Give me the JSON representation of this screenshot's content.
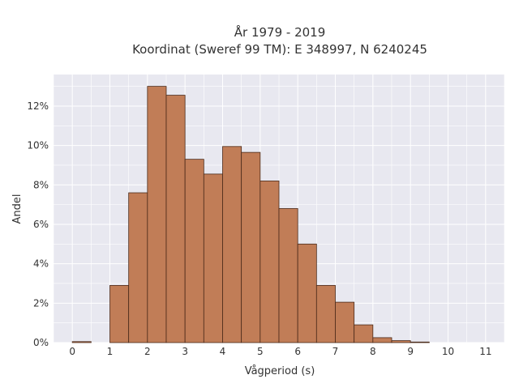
{
  "chart_data": {
    "type": "bar",
    "title_line1": "År 1979 - 2019",
    "title_line2": "Koordinat (Sweref 99 TM): E 348997, N 6240245",
    "xlabel": "Vågperiod (s)",
    "ylabel": "Andel",
    "bin_width": 0.5,
    "bin_starts": [
      0,
      0.5,
      1,
      1.5,
      2,
      2.5,
      3,
      3.5,
      4,
      4.5,
      5,
      5.5,
      6,
      6.5,
      7,
      7.5,
      8,
      8.5,
      9,
      9.5,
      10,
      10.5
    ],
    "values": [
      0.05,
      0,
      2.9,
      7.6,
      13.0,
      12.55,
      9.3,
      8.55,
      9.95,
      9.65,
      8.2,
      6.8,
      5.0,
      2.9,
      2.05,
      0.9,
      0.25,
      0.1,
      0.03,
      0,
      0,
      0
    ],
    "xlim": [
      -0.5,
      11.5
    ],
    "ylim": [
      0,
      13.6
    ],
    "x_ticks": [
      0,
      1,
      2,
      3,
      4,
      5,
      6,
      7,
      8,
      9,
      10,
      11
    ],
    "x_tick_labels": [
      "0",
      "1",
      "2",
      "3",
      "4",
      "5",
      "6",
      "7",
      "8",
      "9",
      "10",
      "11"
    ],
    "y_ticks": [
      0,
      2,
      4,
      6,
      8,
      10,
      12
    ],
    "y_tick_labels": [
      "0%",
      "2%",
      "4%",
      "6%",
      "8%",
      "10%",
      "12%"
    ],
    "grid": true,
    "colors": {
      "bar_fill": "#c17d57",
      "bar_stroke": "#4a2a1a",
      "plot_background": "#e8e8f0",
      "grid": "#ffffff"
    }
  }
}
